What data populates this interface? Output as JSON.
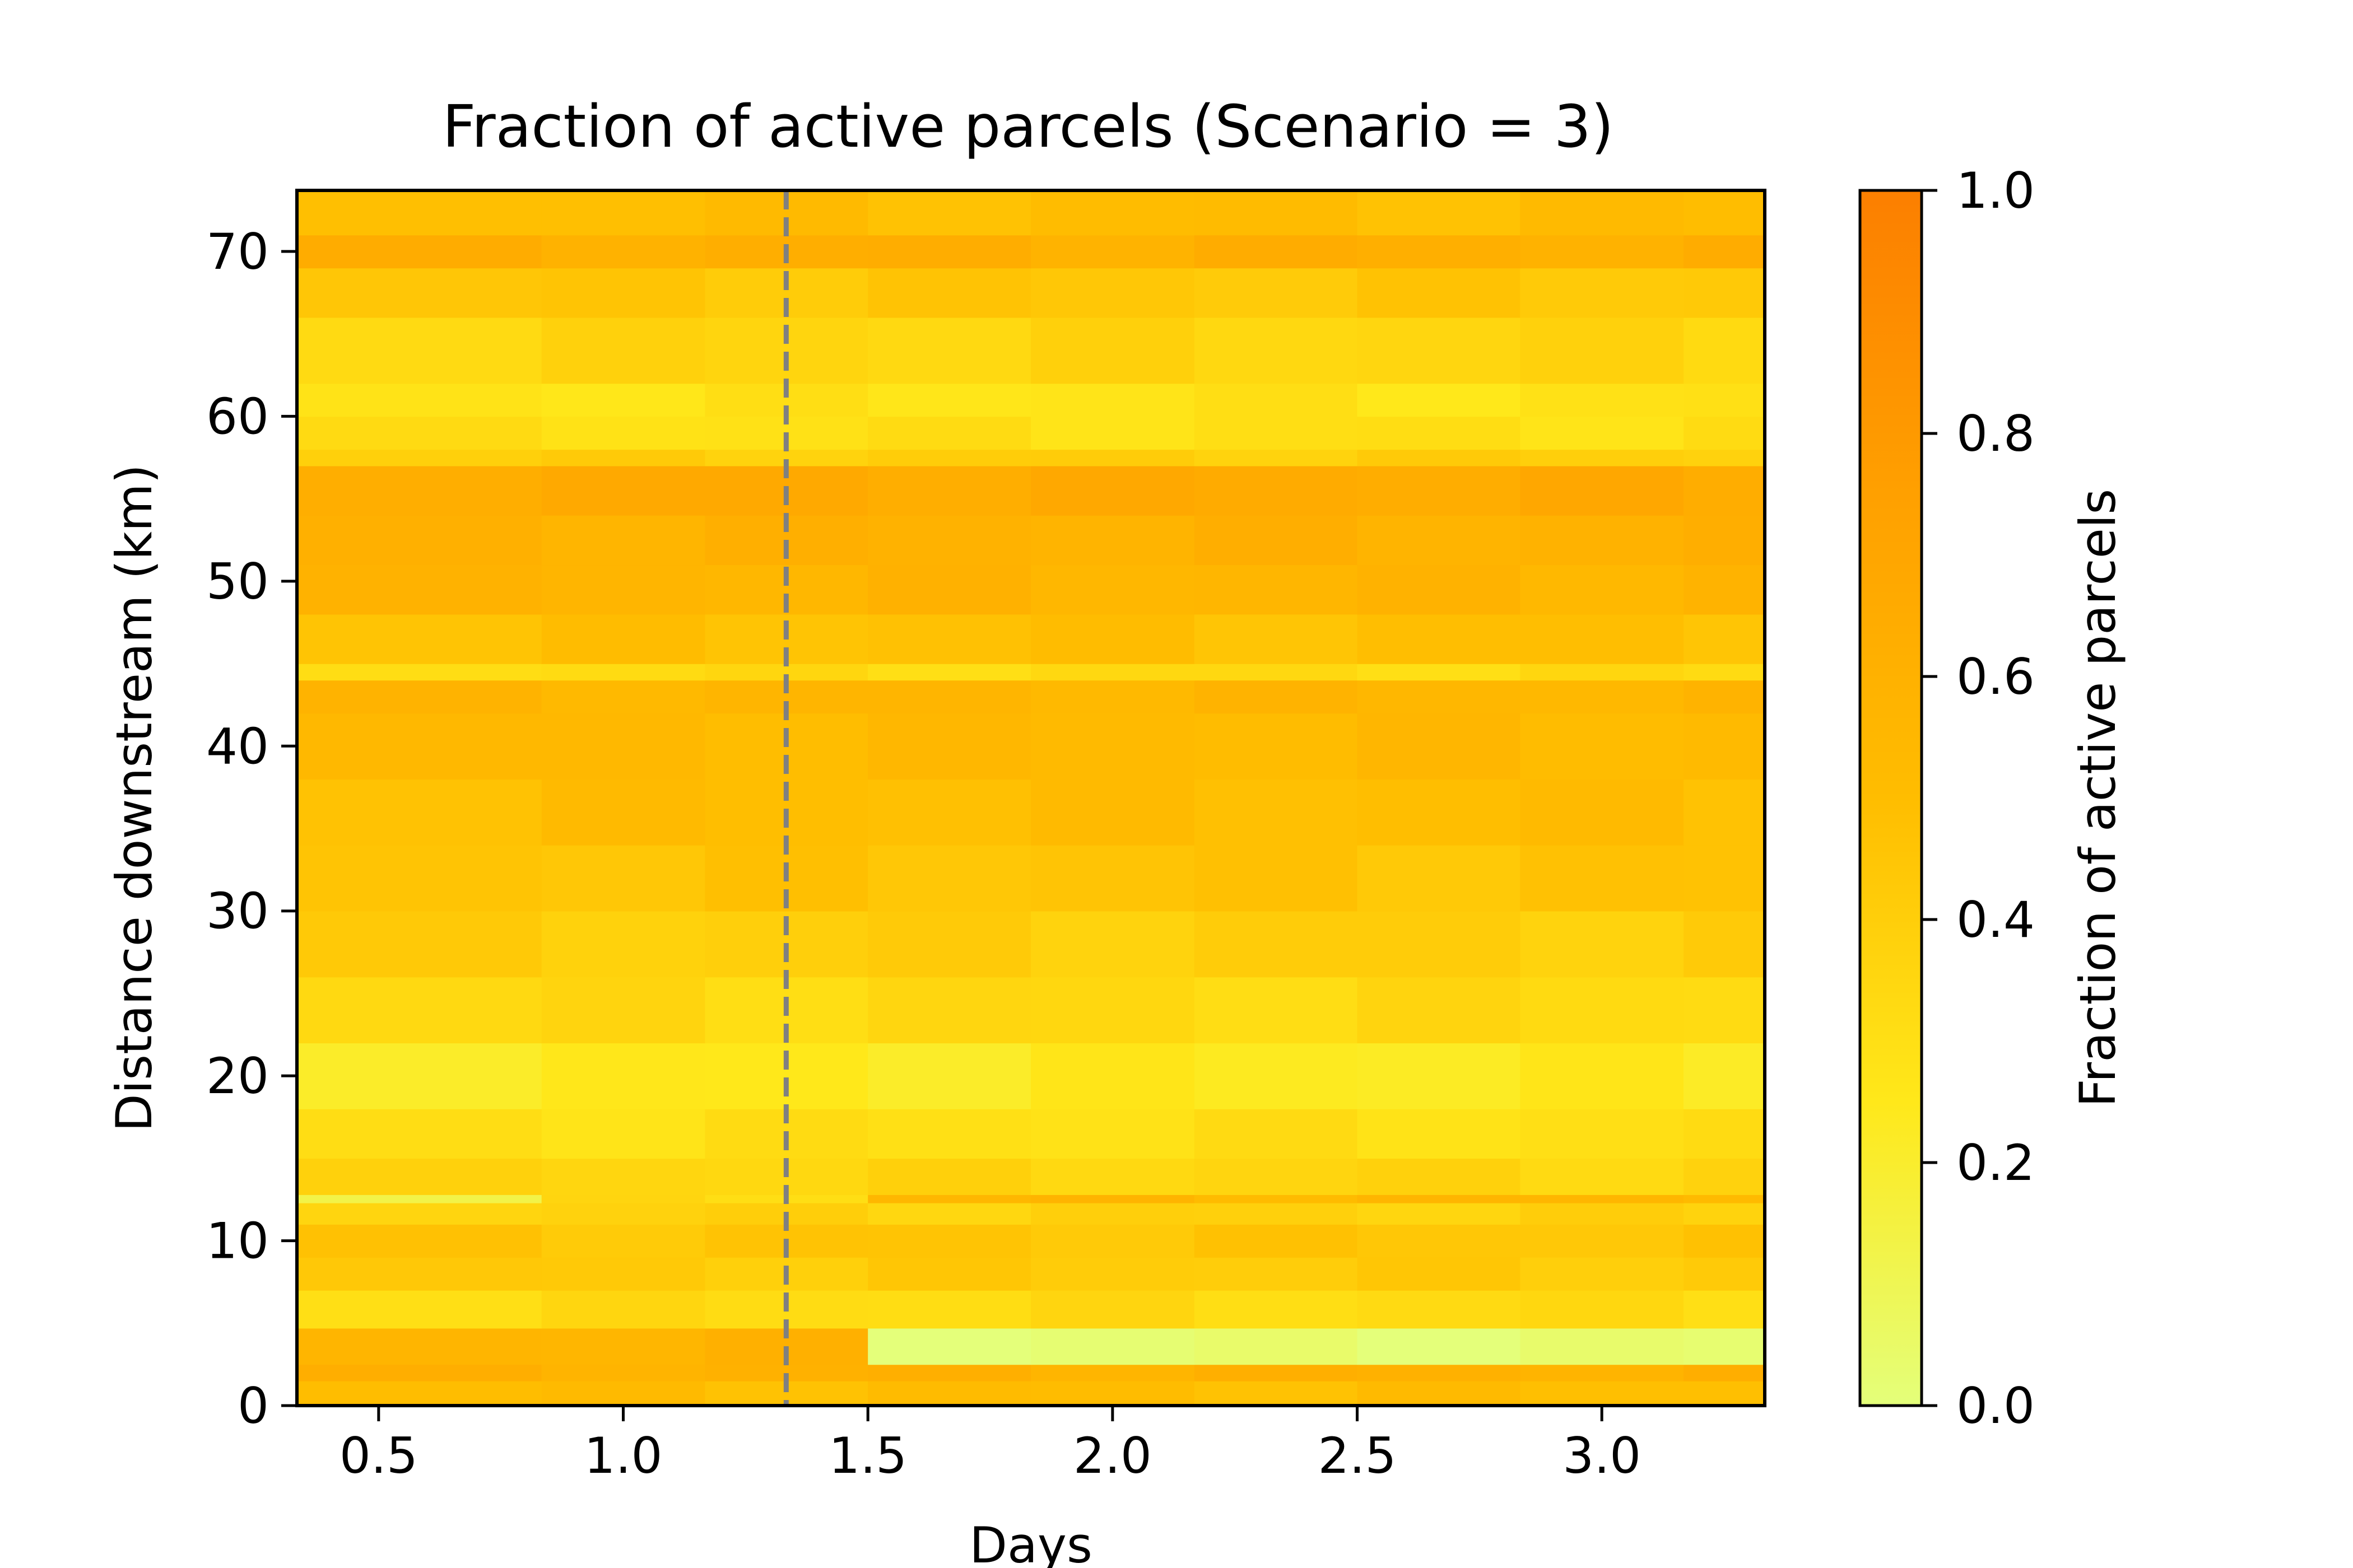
{
  "chart_data": {
    "type": "heatmap",
    "title": "Fraction of  active parcels (Scenario = 3)",
    "xlabel": "Days",
    "ylabel": "Distance downstream (km)",
    "xlim": [
      0.333,
      3.333
    ],
    "ylim": [
      0,
      73.7
    ],
    "x_ticks": [
      0.5,
      1.0,
      1.5,
      2.0,
      2.5,
      3.0
    ],
    "x_tick_labels": [
      "0.5",
      "1.0",
      "1.5",
      "2.0",
      "2.5",
      "3.0"
    ],
    "y_ticks": [
      0,
      10,
      20,
      30,
      40,
      50,
      60,
      70
    ],
    "y_tick_labels": [
      "0",
      "10",
      "20",
      "30",
      "40",
      "50",
      "60",
      "70"
    ],
    "vline": {
      "x": 1.333,
      "style": "dashed",
      "color": "#808080"
    },
    "colorbar": {
      "label": "Fraction of active parcels",
      "range": [
        0.0,
        1.0
      ],
      "ticks": [
        0.0,
        0.2,
        0.4,
        0.6,
        0.8,
        1.0
      ],
      "tick_labels": [
        "0.0",
        "0.2",
        "0.4",
        "0.6",
        "0.8",
        "1.0"
      ],
      "colormap": "Wistia",
      "colors": [
        "#e4ff7a",
        "#ffe81a",
        "#ffbd00",
        "#ffa000",
        "#fc7f00"
      ]
    },
    "time_bins": [
      0.333,
      0.833,
      1.167,
      1.5,
      1.833,
      2.167,
      2.5,
      2.833,
      3.167,
      3.333
    ],
    "distance_bands": [
      {
        "y0": 0.0,
        "y1": 1.5,
        "value": 0.5
      },
      {
        "y0": 1.5,
        "y1": 2.5,
        "value": 0.6
      },
      {
        "y0": 2.5,
        "y1": 4.7,
        "value": 0.58,
        "late_value": 0.02
      },
      {
        "y0": 4.7,
        "y1": 7.0,
        "value": 0.33
      },
      {
        "y0": 7.0,
        "y1": 9.0,
        "value": 0.42
      },
      {
        "y0": 9.0,
        "y1": 11.0,
        "value": 0.45
      },
      {
        "y0": 11.0,
        "y1": 12.3,
        "value": 0.38
      },
      {
        "y0": 12.3,
        "y1": 12.8,
        "value": 0.33,
        "early_value": 0.15,
        "late_value": 0.55
      },
      {
        "y0": 12.8,
        "y1": 15.0,
        "value": 0.36
      },
      {
        "y0": 15.0,
        "y1": 18.0,
        "value": 0.3
      },
      {
        "y0": 18.0,
        "y1": 22.0,
        "value": 0.24
      },
      {
        "y0": 22.0,
        "y1": 26.0,
        "value": 0.34
      },
      {
        "y0": 26.0,
        "y1": 30.0,
        "value": 0.4
      },
      {
        "y0": 30.0,
        "y1": 34.0,
        "value": 0.46
      },
      {
        "y0": 34.0,
        "y1": 38.0,
        "value": 0.5
      },
      {
        "y0": 38.0,
        "y1": 42.0,
        "value": 0.53
      },
      {
        "y0": 42.0,
        "y1": 44.0,
        "value": 0.56
      },
      {
        "y0": 44.0,
        "y1": 45.0,
        "value": 0.33
      },
      {
        "y0": 45.0,
        "y1": 48.0,
        "value": 0.48
      },
      {
        "y0": 48.0,
        "y1": 51.0,
        "value": 0.57
      },
      {
        "y0": 51.0,
        "y1": 54.0,
        "value": 0.6
      },
      {
        "y0": 54.0,
        "y1": 57.0,
        "value": 0.66
      },
      {
        "y0": 57.0,
        "y1": 58.0,
        "value": 0.4
      },
      {
        "y0": 58.0,
        "y1": 60.0,
        "value": 0.3
      },
      {
        "y0": 60.0,
        "y1": 62.0,
        "value": 0.28
      },
      {
        "y0": 62.0,
        "y1": 66.0,
        "value": 0.36
      },
      {
        "y0": 66.0,
        "y1": 69.0,
        "value": 0.44
      },
      {
        "y0": 69.0,
        "y1": 71.0,
        "value": 0.62
      },
      {
        "y0": 71.0,
        "y1": 73.7,
        "value": 0.5
      }
    ]
  }
}
